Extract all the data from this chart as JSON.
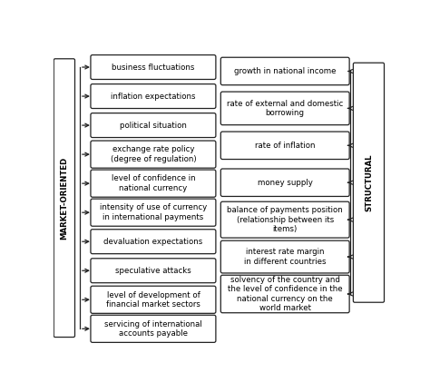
{
  "left_items": [
    "business fluctuations",
    "inflation expectations",
    "political situation",
    "exchange rate policy\n(degree of regulation)",
    "level of confidence in\nnational currency",
    "intensity of use of currency\nin international payments",
    "devaluation expectations",
    "speculative attacks",
    "level of development of\nfinancial market sectors",
    "servicing of international\naccounts payable"
  ],
  "right_items": [
    "growth in national income",
    "rate of external and domestic\nborrowing",
    "rate of inflation",
    "money supply",
    "balance of payments position\n(relationship between its\nitems)",
    "interest rate margin\nin different countries",
    "solvency of the country and\nthe level of confidence in the\nnational currency on the\nworld market"
  ],
  "left_label": "MARKET-ORIENTED",
  "right_label": "STRUCTURAL",
  "bg_color": "#ffffff",
  "box_color": "#ffffff",
  "box_edge_color": "#222222",
  "arrow_color": "#222222",
  "text_color": "#000000",
  "label_color": "#000000"
}
